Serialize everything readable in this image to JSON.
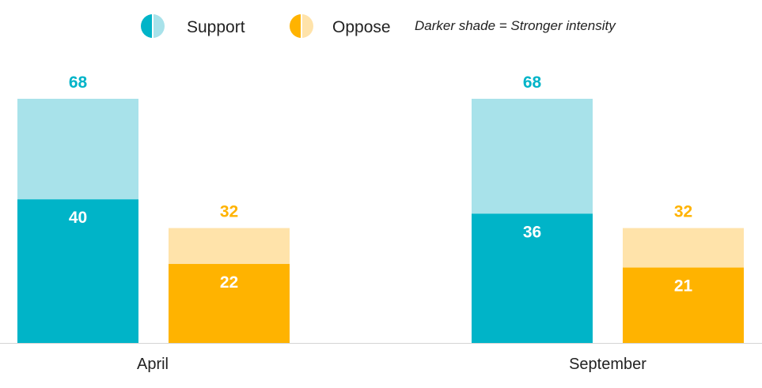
{
  "chart_data": {
    "type": "bar",
    "stacked": true,
    "categories": [
      "April",
      "September"
    ],
    "legend": {
      "placement": "top",
      "items": [
        {
          "label": "Support",
          "color_strong": "#00B4C8",
          "color_light": "#A8E2EA"
        },
        {
          "label": "Oppose",
          "color_strong": "#FFB300",
          "color_light": "#FFE3AA"
        }
      ],
      "note": "Darker shade = Stronger intensity"
    },
    "groups": [
      {
        "category": "April",
        "bars": [
          {
            "series": "Support",
            "strong": 40,
            "total": 68
          },
          {
            "series": "Oppose",
            "strong": 22,
            "total": 32
          }
        ]
      },
      {
        "category": "September",
        "bars": [
          {
            "series": "Support",
            "strong": 36,
            "total": 68
          },
          {
            "series": "Oppose",
            "strong": 21,
            "total": 32
          }
        ]
      }
    ],
    "ylim": [
      0,
      68
    ],
    "grid": false,
    "xlabel": "",
    "ylabel": "",
    "title": ""
  }
}
